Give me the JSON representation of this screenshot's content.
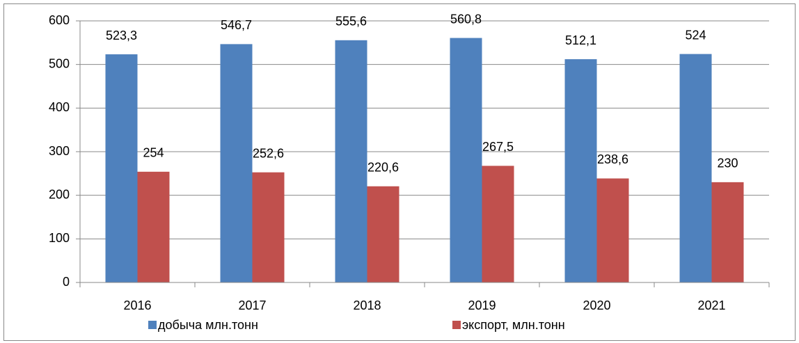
{
  "chart_data": {
    "type": "bar",
    "categories": [
      "2016",
      "2017",
      "2018",
      "2019",
      "2020",
      "2021"
    ],
    "series": [
      {
        "name": "добыча млн.тонн",
        "color": "#4f81bd",
        "values": [
          523.3,
          546.7,
          555.6,
          560.8,
          512.1,
          524
        ],
        "value_labels": [
          "523,3",
          "546,7",
          "555,6",
          "560,8",
          "512,1",
          "524"
        ]
      },
      {
        "name": "экспорт, млн.тонн",
        "color": "#c0504d",
        "values": [
          254,
          252.6,
          220.6,
          267.5,
          238.6,
          230
        ],
        "value_labels": [
          "254",
          "252,6",
          "220,6",
          "267,5",
          "238,6",
          "230"
        ]
      }
    ],
    "ylim": [
      0,
      600
    ],
    "yticks": [
      0,
      100,
      200,
      300,
      400,
      500,
      600
    ],
    "grid": true,
    "legend": "bottom"
  }
}
